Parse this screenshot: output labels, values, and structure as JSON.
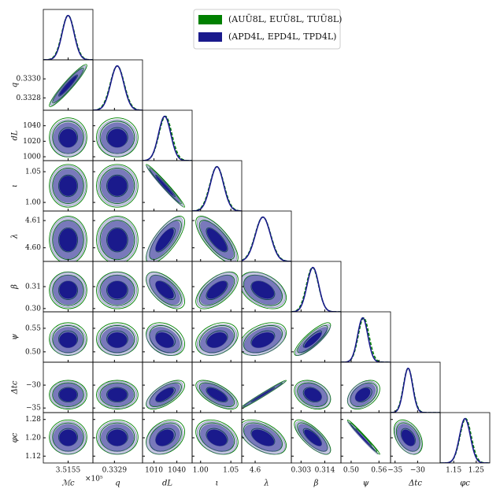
{
  "chart_data": {
    "type": "corner",
    "parameters": [
      {
        "label": "ℳc",
        "xlim": [
          3.51545,
          3.51555
        ],
        "xticks": [
          3.5155
        ],
        "offset_label": "×10⁵"
      },
      {
        "label": "q",
        "xlim": [
          0.33267,
          0.3332
        ],
        "xticks": [
          0.3329
        ],
        "yticks": [
          {
            "value": 0.3328,
            "label": "0.3328"
          },
          {
            "value": 0.333,
            "label": "0.3330"
          }
        ]
      },
      {
        "label": "dL",
        "xlim": [
          995,
          1060
        ],
        "xticks": [
          1010,
          1040
        ],
        "yticks": [
          1000,
          1020,
          1040
        ]
      },
      {
        "label": "ι",
        "xlim": [
          0.986,
          1.068
        ],
        "xticks": [
          {
            "value": 1,
            "label": "1.00"
          },
          1.05
        ],
        "yticks": [
          {
            "value": 1,
            "label": "1.00"
          },
          1.05
        ]
      },
      {
        "label": "λ",
        "xlim": [
          4.595,
          4.6135
        ],
        "xticks": [
          4.6
        ],
        "yticks": [
          {
            "value": 4.6,
            "label": "4.60"
          },
          4.61
        ]
      },
      {
        "label": "β",
        "xlim": [
          0.2985,
          0.3215
        ],
        "xticks": [
          0.303,
          0.314
        ],
        "yticks": [
          {
            "value": 0.3,
            "label": "0.30"
          },
          0.31
        ]
      },
      {
        "label": "ψ",
        "xlim": [
          0.478,
          0.585
        ],
        "xticks": [
          {
            "value": 0.5,
            "label": "0.50"
          },
          0.56
        ],
        "yticks": [
          {
            "value": 0.5,
            "label": "0.50"
          },
          0.55
        ]
      },
      {
        "label": "Δtc",
        "xlim": [
          -36,
          -25
        ],
        "xticks": [
          {
            "value": -35,
            "label": "−35"
          },
          {
            "value": -30,
            "label": "−30"
          }
        ],
        "yticks": [
          {
            "value": -35,
            "label": "−35"
          },
          {
            "value": -30,
            "label": "−30"
          }
        ]
      },
      {
        "label": "φc",
        "xlim": [
          1.09,
          1.31
        ],
        "xticks": [
          1.15,
          1.25
        ],
        "yticks": [
          1.12,
          {
            "value": 1.2,
            "label": "1.20"
          },
          1.28
        ]
      }
    ],
    "series": [
      {
        "name": "(AUŪ8L, EUŪ8L, TUŪ8L)",
        "color": "#008000",
        "means": [
          3.5155,
          0.33293,
          1025,
          1.027,
          4.6029,
          0.3083,
          0.527,
          -32.1,
          1.203
        ],
        "sigmas": [
          1.26e-05,
          7.4e-05,
          8.4,
          0.0116,
          0.0029,
          0.0028,
          0.0116,
          1.05,
          0.025
        ]
      },
      {
        "name": "(APD4L, EPD4L, TPD4L)",
        "color": "#1a1a8c",
        "means": [
          3.5155,
          0.33293,
          1024,
          1.027,
          4.6029,
          0.3085,
          0.525,
          -32.1,
          1.2
        ],
        "sigmas": [
          1.2e-05,
          7e-05,
          8,
          0.011,
          0.0028,
          0.0027,
          0.011,
          1,
          0.024
        ]
      }
    ],
    "correlations": [
      [],
      [
        0.95
      ],
      [
        0,
        0
      ],
      [
        0,
        0,
        -0.98
      ],
      [
        0,
        0,
        0.75,
        -0.75
      ],
      [
        0,
        0,
        -0.6,
        0.6,
        -0.4
      ],
      [
        0,
        0,
        -0.3,
        0.3,
        0.4,
        0.85
      ],
      [
        0,
        0,
        0.65,
        -0.65,
        0.99,
        -0.3,
        0.4
      ],
      [
        0,
        0,
        0.3,
        -0.3,
        -0.5,
        -0.75,
        -0.99,
        -0.4
      ]
    ]
  }
}
